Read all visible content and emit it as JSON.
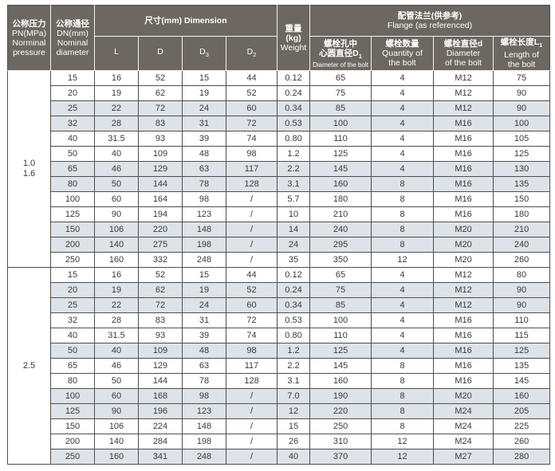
{
  "table": {
    "colors": {
      "header_bg": "#6c6761",
      "header_text": "#ffffff",
      "row_shaded_bg": "#dde3e8",
      "grid_line": "#4f4f4f",
      "body_text": "#3a3a3a"
    },
    "header": {
      "pressure": {
        "lines": [
          "公称压力",
          "PN(MPa)",
          "Norminal",
          "pressure"
        ]
      },
      "diameter": {
        "lines": [
          "公称通径",
          "DN(mm)",
          "Nominal",
          "diameter"
        ]
      },
      "dimension": {
        "title": "尺寸(mm) Dimension",
        "cols": [
          {
            "base": "L",
            "sub": ""
          },
          {
            "base": "D",
            "sub": ""
          },
          {
            "base": "D",
            "sub": "3"
          },
          {
            "base": "D",
            "sub": "2"
          }
        ]
      },
      "weight": {
        "lines": [
          "重量(kg)",
          "Weight"
        ]
      },
      "flange": {
        "title_zh": "配管法兰(供参考)",
        "title_en": "Flange (as referenced)",
        "cols": [
          {
            "zh1": "螺栓孔中",
            "zh2": "心圆直径D",
            "sub": "1",
            "en_small": "Diameter of the bolt",
            "en1": "",
            "en2": ""
          },
          {
            "zh1": "螺栓数量",
            "zh2": "",
            "sub": "",
            "en_small": "",
            "en1": "Quantity of",
            "en2": "the bolt"
          },
          {
            "zh1": "螺栓直径d",
            "zh2": "",
            "sub": "",
            "en_small": "",
            "en1": "Diameter",
            "en2": "of the bolt"
          },
          {
            "zh1": "螺栓长度L",
            "zh2": "",
            "sub": "1",
            "en_small": "",
            "en1": "Length of",
            "en2": "the bolt"
          }
        ]
      }
    },
    "column_keys": [
      "dn",
      "l",
      "d",
      "d3",
      "d2",
      "weight",
      "d1",
      "qty",
      "dia",
      "len"
    ],
    "sections": [
      {
        "pressure": [
          "1.0",
          "1.6"
        ],
        "shaded": [
          false,
          false,
          true,
          true,
          false,
          false,
          true,
          true,
          false,
          false,
          true,
          true,
          false
        ],
        "rows": [
          {
            "dn": "15",
            "l": "16",
            "d": "52",
            "d3": "15",
            "d2": "44",
            "weight": "0.12",
            "d1": "65",
            "qty": "4",
            "dia": "M12",
            "len": "75"
          },
          {
            "dn": "20",
            "l": "19",
            "d": "62",
            "d3": "19",
            "d2": "52",
            "weight": "0.24",
            "d1": "75",
            "qty": "4",
            "dia": "M12",
            "len": "90"
          },
          {
            "dn": "25",
            "l": "22",
            "d": "72",
            "d3": "24",
            "d2": "60",
            "weight": "0.34",
            "d1": "85",
            "qty": "4",
            "dia": "M12",
            "len": "90"
          },
          {
            "dn": "32",
            "l": "28",
            "d": "83",
            "d3": "31",
            "d2": "72",
            "weight": "0.53",
            "d1": "100",
            "qty": "4",
            "dia": "M16",
            "len": "100"
          },
          {
            "dn": "40",
            "l": "31.5",
            "d": "93",
            "d3": "39",
            "d2": "74",
            "weight": "0.80",
            "d1": "110",
            "qty": "4",
            "dia": "M16",
            "len": "105"
          },
          {
            "dn": "50",
            "l": "40",
            "d": "109",
            "d3": "48",
            "d2": "98",
            "weight": "1.2",
            "d1": "125",
            "qty": "4",
            "dia": "M16",
            "len": "125"
          },
          {
            "dn": "65",
            "l": "46",
            "d": "129",
            "d3": "63",
            "d2": "117",
            "weight": "2.2",
            "d1": "145",
            "qty": "4",
            "dia": "M16",
            "len": "130"
          },
          {
            "dn": "80",
            "l": "50",
            "d": "144",
            "d3": "78",
            "d2": "128",
            "weight": "3.1",
            "d1": "160",
            "qty": "8",
            "dia": "M16",
            "len": "135"
          },
          {
            "dn": "100",
            "l": "60",
            "d": "164",
            "d3": "98",
            "d2": "/",
            "weight": "5.7",
            "d1": "180",
            "qty": "8",
            "dia": "M16",
            "len": "150"
          },
          {
            "dn": "125",
            "l": "90",
            "d": "194",
            "d3": "123",
            "d2": "/",
            "weight": "10",
            "d1": "210",
            "qty": "8",
            "dia": "M16",
            "len": "180"
          },
          {
            "dn": "150",
            "l": "106",
            "d": "220",
            "d3": "148",
            "d2": "/",
            "weight": "14",
            "d1": "240",
            "qty": "8",
            "dia": "M20",
            "len": "210"
          },
          {
            "dn": "200",
            "l": "140",
            "d": "275",
            "d3": "198",
            "d2": "/",
            "weight": "24",
            "d1": "295",
            "qty": "8",
            "dia": "M20",
            "len": "240"
          },
          {
            "dn": "250",
            "l": "160",
            "d": "332",
            "d3": "248",
            "d2": "/",
            "weight": "35",
            "d1": "350",
            "qty": "12",
            "dia": "M20",
            "len": "260"
          }
        ]
      },
      {
        "pressure": [
          "2.5"
        ],
        "shaded": [
          false,
          true,
          true,
          false,
          false,
          true,
          false,
          false,
          true,
          true,
          false,
          false,
          true
        ],
        "rows": [
          {
            "dn": "15",
            "l": "16",
            "d": "52",
            "d3": "15",
            "d2": "44",
            "weight": "0.12",
            "d1": "65",
            "qty": "4",
            "dia": "M12",
            "len": "80"
          },
          {
            "dn": "20",
            "l": "19",
            "d": "62",
            "d3": "19",
            "d2": "52",
            "weight": "0.24",
            "d1": "75",
            "qty": "4",
            "dia": "M12",
            "len": "90"
          },
          {
            "dn": "25",
            "l": "22",
            "d": "72",
            "d3": "24",
            "d2": "60",
            "weight": "0.34",
            "d1": "85",
            "qty": "4",
            "dia": "M12",
            "len": "90"
          },
          {
            "dn": "32",
            "l": "28",
            "d": "83",
            "d3": "31",
            "d2": "72",
            "weight": "0.53",
            "d1": "100",
            "qty": "4",
            "dia": "M16",
            "len": "110"
          },
          {
            "dn": "40",
            "l": "31.5",
            "d": "93",
            "d3": "39",
            "d2": "74",
            "weight": "0.80",
            "d1": "110",
            "qty": "4",
            "dia": "M16",
            "len": "115"
          },
          {
            "dn": "50",
            "l": "40",
            "d": "109",
            "d3": "48",
            "d2": "98",
            "weight": "1.2",
            "d1": "125",
            "qty": "4",
            "dia": "M16",
            "len": "125"
          },
          {
            "dn": "65",
            "l": "46",
            "d": "129",
            "d3": "63",
            "d2": "117",
            "weight": "2.2",
            "d1": "145",
            "qty": "8",
            "dia": "M16",
            "len": "135"
          },
          {
            "dn": "80",
            "l": "50",
            "d": "144",
            "d3": "78",
            "d2": "128",
            "weight": "3.1",
            "d1": "160",
            "qty": "8",
            "dia": "M16",
            "len": "145"
          },
          {
            "dn": "100",
            "l": "60",
            "d": "168",
            "d3": "98",
            "d2": "/",
            "weight": "7.0",
            "d1": "190",
            "qty": "8",
            "dia": "M20",
            "len": "160"
          },
          {
            "dn": "125",
            "l": "90",
            "d": "196",
            "d3": "123",
            "d2": "/",
            "weight": "12",
            "d1": "220",
            "qty": "8",
            "dia": "M24",
            "len": "205"
          },
          {
            "dn": "150",
            "l": "106",
            "d": "224",
            "d3": "148",
            "d2": "/",
            "weight": "15",
            "d1": "250",
            "qty": "8",
            "dia": "M24",
            "len": "225"
          },
          {
            "dn": "200",
            "l": "140",
            "d": "284",
            "d3": "198",
            "d2": "/",
            "weight": "26",
            "d1": "310",
            "qty": "12",
            "dia": "M24",
            "len": "260"
          },
          {
            "dn": "250",
            "l": "160",
            "d": "341",
            "d3": "248",
            "d2": "/",
            "weight": "40",
            "d1": "370",
            "qty": "12",
            "dia": "M27",
            "len": "280"
          }
        ]
      }
    ]
  }
}
